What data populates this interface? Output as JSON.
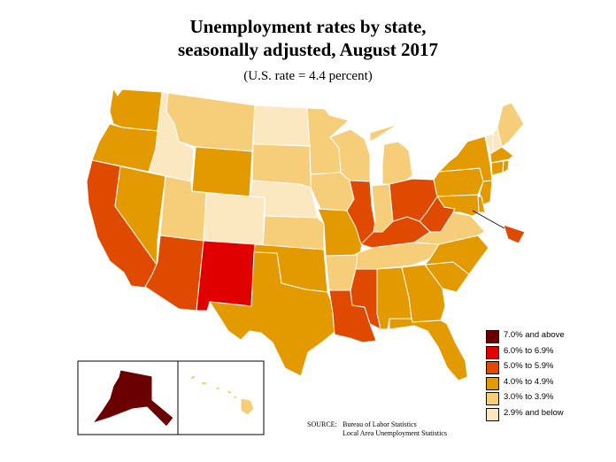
{
  "title_line1": "Unemployment rates by state,",
  "title_line2": "seasonally adjusted, August 2017",
  "subtitle": "(U.S. rate = 4.4 percent)",
  "colors": {
    "c1": "#6b0000",
    "c2": "#e00000",
    "c3": "#e04a00",
    "c4": "#e39a00",
    "c5": "#f6cd78",
    "c6": "#fbe8c0",
    "border": "#ffffff"
  },
  "legend": [
    {
      "label": "7.0% and above",
      "color_key": "c1"
    },
    {
      "label": "6.0% to 6.9%",
      "color_key": "c2"
    },
    {
      "label": "5.0% to 5.9%",
      "color_key": "c3"
    },
    {
      "label": "4.0% to 4.9%",
      "color_key": "c4"
    },
    {
      "label": "3.0% to 3.9%",
      "color_key": "c5"
    },
    {
      "label": "2.9% and below",
      "color_key": "c6"
    }
  ],
  "source": {
    "label": "SOURCE:",
    "line1": "Bureau of Labor Statistics",
    "line2": "Local Area Unemployment Statistics"
  },
  "states": [
    {
      "id": "WA",
      "cat": "c4"
    },
    {
      "id": "OR",
      "cat": "c4"
    },
    {
      "id": "CA",
      "cat": "c3"
    },
    {
      "id": "NV",
      "cat": "c4"
    },
    {
      "id": "ID",
      "cat": "c6"
    },
    {
      "id": "MT",
      "cat": "c5"
    },
    {
      "id": "WY",
      "cat": "c4"
    },
    {
      "id": "UT",
      "cat": "c5"
    },
    {
      "id": "CO",
      "cat": "c6"
    },
    {
      "id": "AZ",
      "cat": "c3"
    },
    {
      "id": "NM",
      "cat": "c2"
    },
    {
      "id": "ND",
      "cat": "c6"
    },
    {
      "id": "SD",
      "cat": "c5"
    },
    {
      "id": "NE",
      "cat": "c6"
    },
    {
      "id": "KS",
      "cat": "c5"
    },
    {
      "id": "OK",
      "cat": "c4"
    },
    {
      "id": "TX",
      "cat": "c4"
    },
    {
      "id": "MN",
      "cat": "c5"
    },
    {
      "id": "IA",
      "cat": "c5"
    },
    {
      "id": "MO",
      "cat": "c4"
    },
    {
      "id": "AR",
      "cat": "c5"
    },
    {
      "id": "LA",
      "cat": "c3"
    },
    {
      "id": "WI",
      "cat": "c5"
    },
    {
      "id": "IL",
      "cat": "c3"
    },
    {
      "id": "MI",
      "cat": "c5"
    },
    {
      "id": "IN",
      "cat": "c5"
    },
    {
      "id": "KY",
      "cat": "c3"
    },
    {
      "id": "TN",
      "cat": "c5"
    },
    {
      "id": "MS",
      "cat": "c3"
    },
    {
      "id": "AL",
      "cat": "c4"
    },
    {
      "id": "GA",
      "cat": "c4"
    },
    {
      "id": "FL",
      "cat": "c4"
    },
    {
      "id": "SC",
      "cat": "c4"
    },
    {
      "id": "NC",
      "cat": "c4"
    },
    {
      "id": "VA",
      "cat": "c5"
    },
    {
      "id": "WV",
      "cat": "c3"
    },
    {
      "id": "OH",
      "cat": "c3"
    },
    {
      "id": "PA",
      "cat": "c4"
    },
    {
      "id": "NY",
      "cat": "c4"
    },
    {
      "id": "VT",
      "cat": "c6"
    },
    {
      "id": "NH",
      "cat": "c6"
    },
    {
      "id": "ME",
      "cat": "c5"
    },
    {
      "id": "MA",
      "cat": "c4"
    },
    {
      "id": "CT",
      "cat": "c4"
    },
    {
      "id": "RI",
      "cat": "c4"
    },
    {
      "id": "NJ",
      "cat": "c4"
    },
    {
      "id": "DE",
      "cat": "c4"
    },
    {
      "id": "MD",
      "cat": "c4"
    },
    {
      "id": "DC",
      "cat": "c3"
    },
    {
      "id": "AK",
      "cat": "c1"
    },
    {
      "id": "HI",
      "cat": "c5"
    }
  ]
}
